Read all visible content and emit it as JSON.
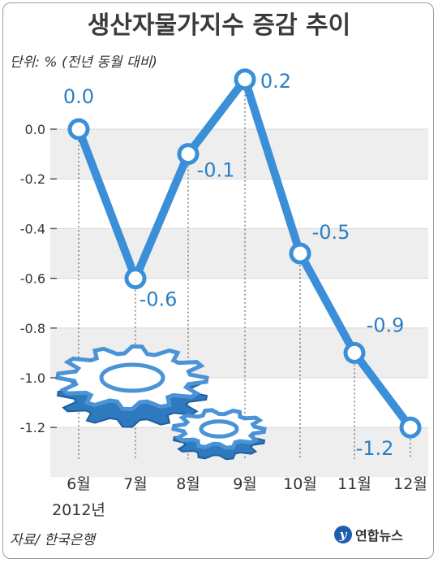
{
  "header": {
    "title": "생산자물가지수 증감 추이",
    "unit": "단위: % (전년 동월 대비)"
  },
  "footer": {
    "source": "자료/ 한국은행",
    "logo_text": "연합뉴스",
    "logo_mark": "y"
  },
  "chart_data": {
    "type": "line",
    "categories": [
      "6월",
      "7월",
      "8월",
      "9월",
      "10월",
      "11월",
      "12월"
    ],
    "year_label": "2012년",
    "series": [
      {
        "values": [
          0.0,
          -0.6,
          -0.1,
          0.2,
          -0.5,
          -0.9,
          -1.2
        ]
      }
    ],
    "value_labels": [
      "0.0",
      "-0.6",
      "-0.1",
      "0.2",
      "-0.5",
      "-0.9",
      "-1.2"
    ],
    "yticks": [
      0.0,
      -0.2,
      -0.4,
      -0.6,
      -0.8,
      -1.0,
      -1.2
    ],
    "ytick_labels": [
      "0.0",
      "-0.2",
      "-0.4",
      "-0.6",
      "-0.8",
      "-1.0",
      "-1.2"
    ],
    "ylim": [
      -1.3,
      0.3
    ],
    "line_color": "#3a8fd8",
    "label_color": "#2a7fc4",
    "band_color": "#eeeeee",
    "gear_color": "#4a93d6"
  }
}
